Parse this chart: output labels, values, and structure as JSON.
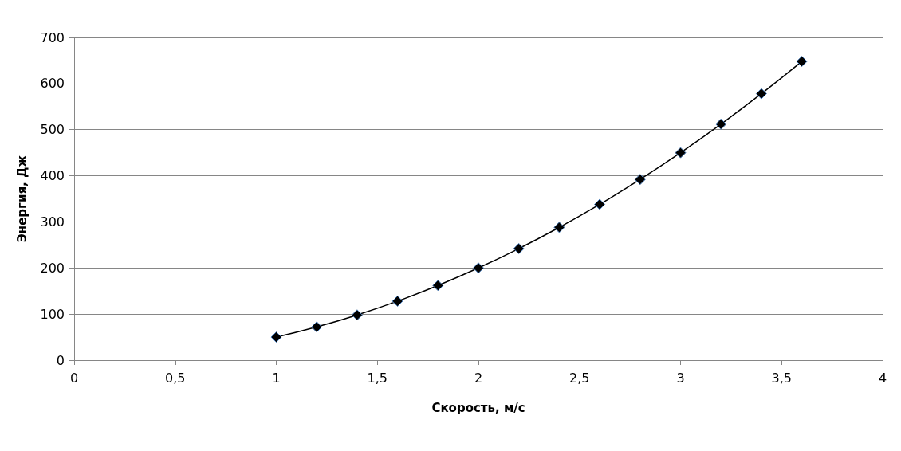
{
  "chart_data": {
    "type": "line",
    "xlabel": "Скорость, м/с",
    "ylabel": "Энергия, Дж",
    "x": [
      1,
      1.2,
      1.4,
      1.6,
      1.8,
      2,
      2.2,
      2.4,
      2.6,
      2.8,
      3,
      3.2,
      3.4,
      3.6
    ],
    "series": [
      {
        "color": "#000000",
        "values": [
          50,
          72,
          98,
          128,
          162,
          200,
          242,
          288,
          338,
          392,
          450,
          512,
          578,
          648
        ]
      }
    ],
    "xlim": [
      0,
      4
    ],
    "xticks": [
      0,
      {
        "value": 0.5,
        "label": "0,5"
      },
      1,
      {
        "value": 1.5,
        "label": "1,5"
      },
      2,
      {
        "value": 2.5,
        "label": "2,5"
      },
      3,
      {
        "value": 3.5,
        "label": "3,5"
      },
      4
    ],
    "ylim": [
      0,
      700
    ],
    "yticks": [
      0,
      100,
      200,
      300,
      400,
      500,
      600,
      700
    ],
    "grid": "y",
    "marker": "diamond",
    "line_style": "solid"
  }
}
